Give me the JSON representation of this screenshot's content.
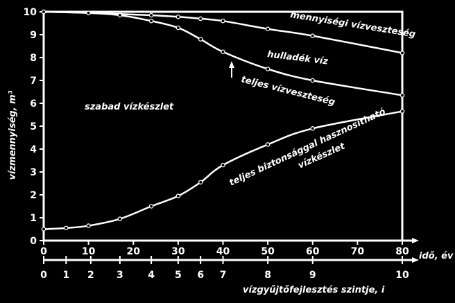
{
  "chart_data": {
    "type": "line",
    "ylabel": "vízmennyiség, m³",
    "xlabel": "idő, év",
    "x2label": "vízgyűjtőfejlesztés szintje, i",
    "xlim": [
      0,
      80
    ],
    "ylim": [
      0,
      10
    ],
    "xticks": [
      0,
      10,
      20,
      30,
      40,
      50,
      60,
      70,
      80
    ],
    "yticks": [
      0,
      1,
      2,
      3,
      4,
      5,
      6,
      7,
      8,
      9,
      10
    ],
    "x2ticks": [
      {
        "year": 0,
        "label": "0"
      },
      {
        "year": 5,
        "label": "1"
      },
      {
        "year": 10.5,
        "label": "2"
      },
      {
        "year": 17,
        "label": "3"
      },
      {
        "year": 24,
        "label": "4"
      },
      {
        "year": 30,
        "label": "5"
      },
      {
        "year": 35,
        "label": "6"
      },
      {
        "year": 40,
        "label": "7"
      },
      {
        "year": 50,
        "label": "8"
      },
      {
        "year": 60,
        "label": "9"
      },
      {
        "year": 80,
        "label": "10"
      }
    ],
    "series": [
      {
        "name": "mennyiségi vízveszteség",
        "x": [
          0,
          10,
          17,
          24,
          30,
          35,
          40,
          50,
          60,
          80
        ],
        "y": [
          10.0,
          9.95,
          9.9,
          9.85,
          9.78,
          9.7,
          9.6,
          9.25,
          8.95,
          8.2
        ]
      },
      {
        "name": "teljes vízveszteség",
        "x": [
          0,
          10,
          17,
          24,
          30,
          35,
          40,
          50,
          60,
          80
        ],
        "y": [
          10.0,
          9.95,
          9.85,
          9.6,
          9.3,
          8.8,
          8.25,
          7.5,
          7.0,
          6.35
        ]
      },
      {
        "name": "teljes biztonsággal hasznosítható vízkészlet",
        "x": [
          0,
          5,
          10,
          17,
          24,
          30,
          35,
          40,
          50,
          60,
          80
        ],
        "y": [
          0.5,
          0.55,
          0.65,
          0.95,
          1.5,
          1.95,
          2.55,
          3.3,
          4.2,
          4.9,
          5.65
        ]
      }
    ],
    "annotations": {
      "mennyisegi": "mennyiségi vízveszteség",
      "hulladek": "hulladék víz",
      "teljes": "teljes vízveszteség",
      "szabad": "szabad vízkészlet",
      "hasznosithato_1": "teljes biztonsággal hasznosítható",
      "hasznosithato_2": "vízkészlet"
    }
  }
}
